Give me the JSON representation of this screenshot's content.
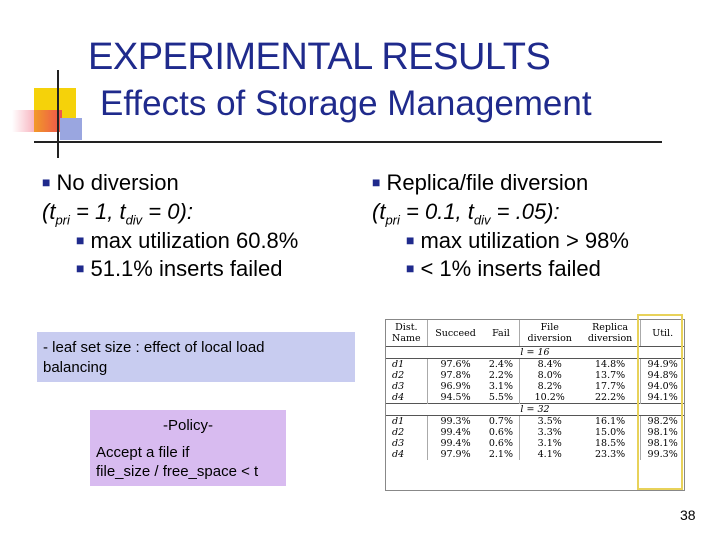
{
  "title": {
    "main": "EXPERIMENTAL RESULTS",
    "sub": "Effects of Storage Management"
  },
  "left_col": {
    "heading": "No diversion",
    "params": {
      "open": "(t",
      "sub1": "pri",
      "mid": " = 1, t",
      "sub2": "div",
      "close": " = 0):"
    },
    "items": [
      "max utilization 60.8%",
      "51.1% inserts failed"
    ]
  },
  "right_col": {
    "heading": "Replica/file diversion",
    "params": {
      "open": "(t",
      "sub1": "pri",
      "mid": " = 0.1, t",
      "sub2": "div",
      "close": " = .05):"
    },
    "items": [
      "max utilization > 98%",
      "< 1% inserts failed"
    ]
  },
  "note_leaf": {
    "line1": "- leaf set size : effect of local load",
    "line2": "balancing"
  },
  "note_policy": {
    "heading": "-Policy-",
    "line1": "Accept a file if",
    "line2": "file_size / free_space < t"
  },
  "table": {
    "headers": [
      {
        "l1": "Dist.",
        "l2": "Name"
      },
      {
        "l1": "Succeed",
        "l2": ""
      },
      {
        "l1": "Fail",
        "l2": ""
      },
      {
        "l1": "File",
        "l2": "diversion"
      },
      {
        "l1": "Replica",
        "l2": "diversion"
      },
      {
        "l1": "Util.",
        "l2": ""
      }
    ],
    "groups": [
      {
        "label": "l = 16",
        "rows": [
          [
            "d1",
            "97.6%",
            "2.4%",
            "8.4%",
            "14.8%",
            "94.9%"
          ],
          [
            "d2",
            "97.8%",
            "2.2%",
            "8.0%",
            "13.7%",
            "94.8%"
          ],
          [
            "d3",
            "96.9%",
            "3.1%",
            "8.2%",
            "17.7%",
            "94.0%"
          ],
          [
            "d4",
            "94.5%",
            "5.5%",
            "10.2%",
            "22.2%",
            "94.1%"
          ]
        ]
      },
      {
        "label": "l = 32",
        "rows": [
          [
            "d1",
            "99.3%",
            "0.7%",
            "3.5%",
            "16.1%",
            "98.2%"
          ],
          [
            "d2",
            "99.4%",
            "0.6%",
            "3.3%",
            "15.0%",
            "98.1%"
          ],
          [
            "d3",
            "99.4%",
            "0.6%",
            "3.1%",
            "18.5%",
            "98.1%"
          ],
          [
            "d4",
            "97.9%",
            "2.1%",
            "4.1%",
            "23.3%",
            "99.3%"
          ]
        ]
      }
    ]
  },
  "page_number": "38"
}
